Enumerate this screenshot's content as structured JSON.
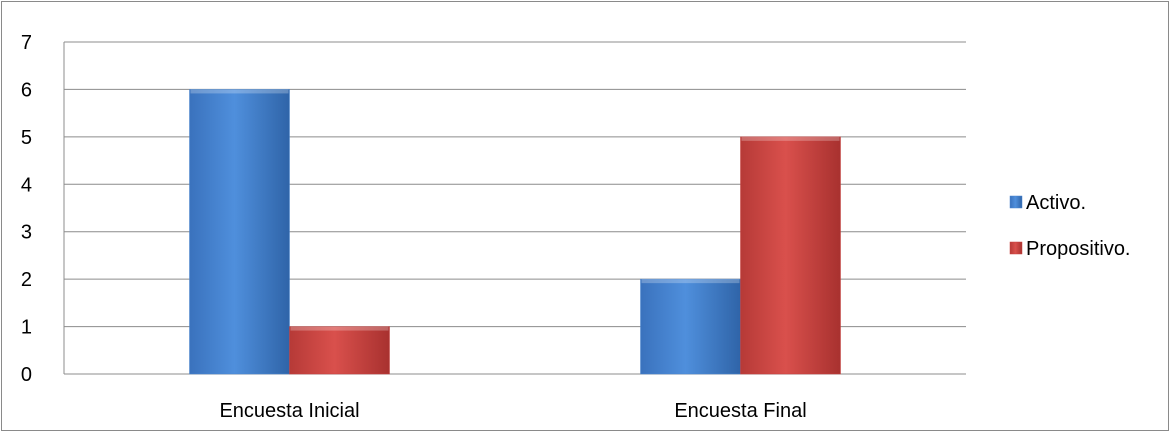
{
  "chart_data": {
    "type": "bar",
    "categories": [
      "Encuesta Inicial",
      "Encuesta Final"
    ],
    "series": [
      {
        "name": "Activo.",
        "values": [
          6,
          2
        ],
        "color": "#4a86d0"
      },
      {
        "name": "Propositivo.",
        "values": [
          1,
          5
        ],
        "color": "#c8413e"
      }
    ],
    "title": "",
    "xlabel": "",
    "ylabel": "",
    "ylim": [
      0,
      7
    ],
    "yticks": [
      "0",
      "1",
      "2",
      "3",
      "4",
      "5",
      "6",
      "7"
    ],
    "grid": true,
    "legend_position": "right"
  }
}
